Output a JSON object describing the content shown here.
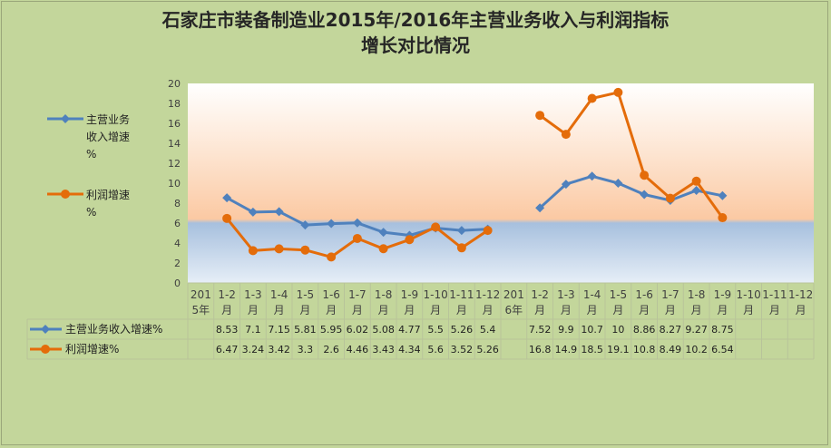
{
  "chart_data": {
    "type": "line",
    "title_line1": "石家庄市装备制造业2015年/2016年主营业务收入与利润指标",
    "title_line2": "增长对比情况",
    "ylim": [
      0,
      20
    ],
    "yticks": [
      0,
      2,
      4,
      6,
      8,
      10,
      12,
      14,
      16,
      18,
      20
    ],
    "categories": [
      [
        "201",
        "5年"
      ],
      [
        "1-2",
        "月"
      ],
      [
        "1-3",
        "月"
      ],
      [
        "1-4",
        "月"
      ],
      [
        "1-5",
        "月"
      ],
      [
        "1-6",
        "月"
      ],
      [
        "1-7",
        "月"
      ],
      [
        "1-8",
        "月"
      ],
      [
        "1-9",
        "月"
      ],
      [
        "1-10",
        "月"
      ],
      [
        "1-11",
        "月"
      ],
      [
        "1-12",
        "月"
      ],
      [
        "201",
        "6年"
      ],
      [
        "1-2",
        "月"
      ],
      [
        "1-3",
        "月"
      ],
      [
        "1-4",
        "月"
      ],
      [
        "1-5",
        "月"
      ],
      [
        "1-6",
        "月"
      ],
      [
        "1-7",
        "月"
      ],
      [
        "1-8",
        "月"
      ],
      [
        "1-9",
        "月"
      ],
      [
        "1-10",
        "月"
      ],
      [
        "1-11",
        "月"
      ],
      [
        "1-12",
        "月"
      ]
    ],
    "series": [
      {
        "name": "主营业务收入增速%",
        "legend_lines": [
          "主营业务",
          "收入增速",
          "%"
        ],
        "color": "#4f81bd",
        "values": [
          null,
          8.53,
          7.1,
          7.15,
          5.81,
          5.95,
          6.02,
          5.08,
          4.77,
          5.5,
          5.26,
          5.4,
          null,
          7.52,
          9.9,
          10.7,
          10,
          8.86,
          8.27,
          9.27,
          8.75,
          null,
          null,
          null
        ],
        "labels": [
          "",
          "8.53",
          "7.1",
          "7.15",
          "5.81",
          "5.95",
          "6.02",
          "5.08",
          "4.77",
          "5.5",
          "5.26",
          "5.4",
          "",
          "7.52",
          "9.9",
          "10.7",
          "10",
          "8.86",
          "8.27",
          "9.27",
          "8.75",
          "",
          "",
          ""
        ]
      },
      {
        "name": "利润增速%",
        "legend_lines": [
          "利润增速",
          "%"
        ],
        "color": "#e46c0a",
        "values": [
          null,
          6.47,
          3.24,
          3.42,
          3.3,
          2.6,
          4.46,
          3.43,
          4.34,
          5.6,
          3.52,
          5.26,
          null,
          16.8,
          14.9,
          18.5,
          19.1,
          10.8,
          8.49,
          10.2,
          6.54,
          null,
          null,
          null
        ],
        "labels": [
          "",
          "6.47",
          "3.24",
          "3.42",
          "3.3",
          "2.6",
          "4.46",
          "3.43",
          "4.34",
          "5.6",
          "3.52",
          "5.26",
          "",
          "16.8",
          "14.9",
          "18.5",
          "19.1",
          "10.8",
          "8.49",
          "10.2",
          "6.54",
          "",
          "",
          ""
        ]
      }
    ],
    "grid": false,
    "legend": "left"
  }
}
